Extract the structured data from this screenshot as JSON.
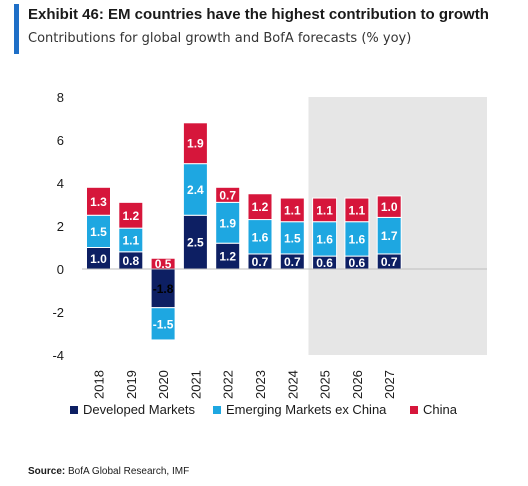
{
  "header": {
    "title": "Exhibit 46: EM countries have the highest contribution to growth",
    "subtitle": "Contributions for global growth and BofA forecasts (% yoy)"
  },
  "source": {
    "label": "Source:",
    "text": "BofA Global Research, IMF"
  },
  "colors": {
    "accent": "#1e6fc7",
    "forecast_shade": "#e6e6e6"
  },
  "chart_data": {
    "type": "bar",
    "stacked": true,
    "categories": [
      "2018",
      "2019",
      "2020",
      "2021",
      "2022",
      "2023",
      "2024",
      "2025",
      "2026",
      "2027"
    ],
    "series": [
      {
        "name": "Developed Markets",
        "color": "#0d1f63",
        "values": [
          1.0,
          0.8,
          -1.8,
          2.5,
          1.2,
          0.7,
          0.7,
          0.6,
          0.6,
          0.7
        ],
        "labels": [
          "1.0",
          "0.8",
          "-1.8",
          "2.5",
          "1.2",
          "0.7",
          "0.7",
          "0.6",
          "0.6",
          "0.7"
        ]
      },
      {
        "name": "Emerging Markets ex China",
        "color": "#1ea7e1",
        "values": [
          1.5,
          1.1,
          -1.5,
          2.4,
          1.9,
          1.6,
          1.5,
          1.6,
          1.6,
          1.7
        ],
        "labels": [
          "1.5",
          "1.1",
          "-1.5",
          "2.4",
          "1.9",
          "1.6",
          "1.5",
          "1.6",
          "1.6",
          "1.7"
        ]
      },
      {
        "name": "China",
        "color": "#d6163b",
        "values": [
          1.3,
          1.2,
          0.5,
          1.9,
          0.7,
          1.2,
          1.1,
          1.1,
          1.1,
          1.0
        ],
        "labels": [
          "1.3",
          "1.2",
          "0.5",
          "1.9",
          "0.7",
          "1.2",
          "1.1",
          "1.1",
          "1.1",
          "1.0"
        ]
      }
    ],
    "ylim": [
      -4,
      8
    ],
    "yticks": [
      "8",
      "6",
      "4",
      "2",
      "0",
      "-2",
      "-4"
    ],
    "forecast_categories": [
      "2025",
      "2026",
      "2027"
    ],
    "legend_position": "bottom",
    "grid": false
  }
}
